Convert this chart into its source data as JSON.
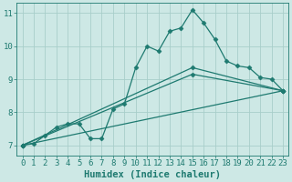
{
  "title": "",
  "xlabel": "Humidex (Indice chaleur)",
  "background_color": "#cde8e5",
  "grid_color": "#a8ceca",
  "line_color": "#1e7a70",
  "xlim": [
    -0.5,
    23.5
  ],
  "ylim": [
    6.7,
    11.3
  ],
  "xticks": [
    0,
    1,
    2,
    3,
    4,
    5,
    6,
    7,
    8,
    9,
    10,
    11,
    12,
    13,
    14,
    15,
    16,
    17,
    18,
    19,
    20,
    21,
    22,
    23
  ],
  "yticks": [
    7,
    8,
    9,
    10,
    11
  ],
  "series1_x": [
    0,
    1,
    2,
    3,
    4,
    5,
    6,
    7,
    8,
    9,
    10,
    11,
    12,
    13,
    14,
    15,
    16,
    17,
    18,
    19,
    20,
    21,
    22,
    23
  ],
  "series1_y": [
    7.0,
    7.05,
    7.3,
    7.55,
    7.65,
    7.65,
    7.2,
    7.2,
    8.1,
    8.25,
    9.35,
    10.0,
    9.85,
    10.45,
    10.55,
    11.1,
    10.7,
    10.2,
    9.55,
    9.4,
    9.35,
    9.05,
    9.0,
    8.65
  ],
  "series2_x": [
    0,
    23
  ],
  "series2_y": [
    7.0,
    8.65
  ],
  "series3_x": [
    0,
    15,
    23
  ],
  "series3_y": [
    7.0,
    9.15,
    8.65
  ],
  "series4_x": [
    0,
    15,
    23
  ],
  "series4_y": [
    7.0,
    9.35,
    8.65
  ],
  "marker": "D",
  "marker_size": 2.5,
  "line_width": 0.9,
  "tick_fontsize": 6.5,
  "xlabel_fontsize": 7.5
}
